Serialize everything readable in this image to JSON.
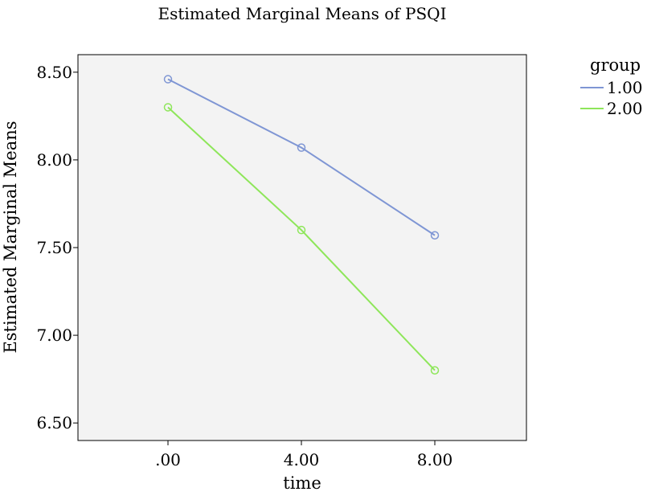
{
  "chart_data": {
    "type": "line",
    "title": "Estimated Marginal Means of PSQI",
    "xlabel": "time",
    "ylabel": "Estimated Marginal Means",
    "categories": [
      ".00",
      "4.00",
      "8.00"
    ],
    "yticks": [
      "6.50",
      "7.00",
      "7.50",
      "8.00",
      "8.50"
    ],
    "ylim": [
      6.4,
      8.6
    ],
    "grid": false,
    "legend": {
      "title": "group",
      "placement": "right"
    },
    "series": [
      {
        "name": "1.00",
        "color": "#7f96d4",
        "values": [
          8.46,
          8.07,
          7.57
        ]
      },
      {
        "name": "2.00",
        "color": "#8ee65a",
        "values": [
          8.3,
          7.6,
          6.8
        ]
      }
    ],
    "plot_background": "#f3f3f3"
  }
}
